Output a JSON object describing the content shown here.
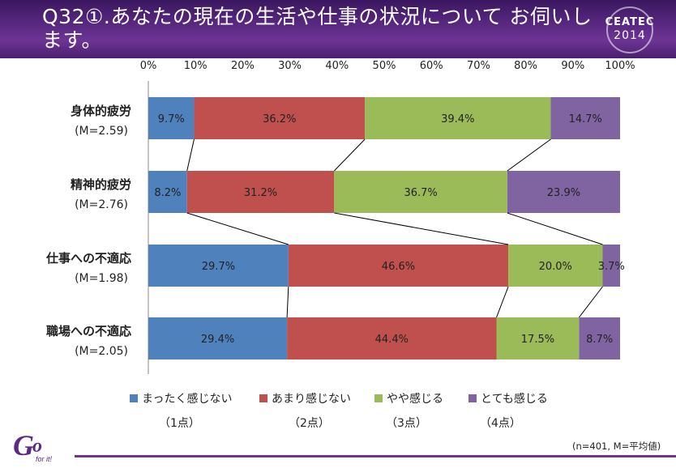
{
  "header": {
    "title": "Q32①.あなたの現在の生活や仕事の状況について お伺いします。",
    "logo_text": "CEATEC",
    "logo_year": "2014",
    "colors": {
      "band": "#5b2a84"
    }
  },
  "chart_data": {
    "type": "bar",
    "orientation": "horizontal",
    "stacked": "percent",
    "x_ticks": [
      "0%",
      "10%",
      "20%",
      "30%",
      "40%",
      "50%",
      "60%",
      "70%",
      "80%",
      "90%",
      "100%"
    ],
    "xlim": [
      0,
      100
    ],
    "categories": [
      {
        "name": "身体的疲労",
        "mean": "(M=2.59)"
      },
      {
        "name": "精神的疲労",
        "mean": "(M=2.76)"
      },
      {
        "name": "仕事への不適応",
        "mean": "(M=1.98)"
      },
      {
        "name": "職場への不適応",
        "mean": "(M=2.05)"
      }
    ],
    "series": [
      {
        "name": "まったく感じない",
        "points": "（1点）",
        "color": "#4f81bd",
        "values": [
          9.7,
          8.2,
          29.7,
          29.4
        ],
        "labels": [
          "9.7%",
          "8.2%",
          "29.7%",
          "29.4%"
        ]
      },
      {
        "name": "あまり感じない",
        "points": "（2点）",
        "color": "#c0504d",
        "values": [
          36.2,
          31.2,
          46.6,
          44.4
        ],
        "labels": [
          "36.2%",
          "31.2%",
          "46.6%",
          "44.4%"
        ]
      },
      {
        "name": "やや感じる",
        "points": "（3点）",
        "color": "#9bbb59",
        "values": [
          39.4,
          36.7,
          20.0,
          17.5
        ],
        "labels": [
          "39.4%",
          "36.7%",
          "20.0%",
          "17.5%"
        ]
      },
      {
        "name": "とても感じる",
        "points": "（4点）",
        "color": "#8064a2",
        "values": [
          14.7,
          23.9,
          3.7,
          8.7
        ],
        "labels": [
          "14.7%",
          "23.9%",
          "3.7%",
          "8.7%"
        ]
      }
    ],
    "series_connector_lines": true,
    "grid": false,
    "legend_position": "bottom"
  },
  "footer": {
    "note": "(n=401, M=平均値)",
    "brand": "Go for it!"
  }
}
